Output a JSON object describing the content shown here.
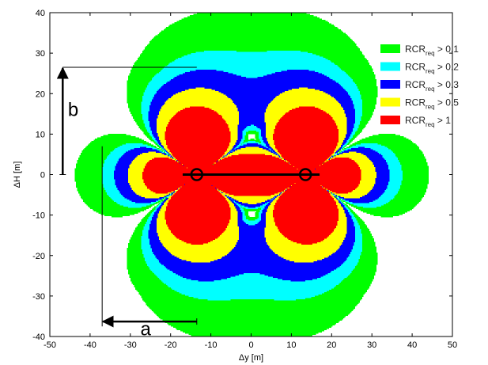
{
  "chart_data": {
    "type": "contour",
    "title": "",
    "xlabel": "Δy [m]",
    "ylabel": "ΔH [m]",
    "xlim": [
      -50,
      50
    ],
    "ylim": [
      -40,
      40
    ],
    "x_ticks": [
      -50,
      -40,
      -30,
      -20,
      -10,
      0,
      10,
      20,
      30,
      40,
      50
    ],
    "y_ticks": [
      -40,
      -30,
      -20,
      -10,
      0,
      10,
      20,
      30,
      40
    ],
    "legend_position": "top-right",
    "legend": [
      {
        "base": "RCR",
        "sub": "req",
        "rest": " > 0.1",
        "color": "#00ff00"
      },
      {
        "base": "RCR",
        "sub": "req",
        "rest": " > 0.2",
        "color": "#00ffff"
      },
      {
        "base": "RCR",
        "sub": "req",
        "rest": " > 0.3",
        "color": "#0000ff"
      },
      {
        "base": "RCR",
        "sub": "req",
        "rest": " > 0.5",
        "color": "#ffff00"
      },
      {
        "base": "RCR",
        "sub": "req",
        "rest": " > 1",
        "color": "#ff0000"
      }
    ],
    "conductors": [
      {
        "y": -13.5,
        "H": 0
      },
      {
        "y": 13.5,
        "H": 0
      }
    ],
    "annotations": [
      {
        "label": "a"
      },
      {
        "label": "b"
      }
    ]
  }
}
